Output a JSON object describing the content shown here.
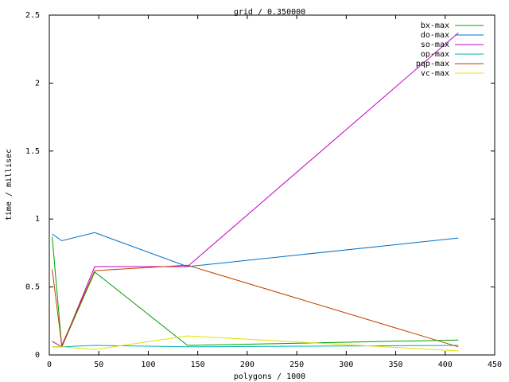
{
  "chart_data": {
    "type": "line",
    "title": "grid / 0.350000",
    "xlabel": "polygons / 1000",
    "ylabel": "time / millisec",
    "xlim": [
      0,
      450
    ],
    "ylim": [
      0,
      2.5
    ],
    "xticks": [
      0,
      50,
      100,
      150,
      200,
      250,
      300,
      350,
      400,
      450
    ],
    "yticks": [
      0,
      0.5,
      1,
      1.5,
      2,
      2.5
    ],
    "xtick_labels": [
      "0",
      "50",
      "100",
      "150",
      "200",
      "250",
      "300",
      "350",
      "400",
      "450"
    ],
    "ytick_labels": [
      "0",
      "0.5",
      "1",
      "1.5",
      "2",
      "2.5"
    ],
    "grid": false,
    "legend_position": "top-right",
    "series": [
      {
        "name": "bx-max",
        "color": "#00a000",
        "x": [
          2.9,
          12.6,
          45.9,
          139.6,
          413.3
        ],
        "y": [
          0.87,
          0.06,
          0.61,
          0.07,
          0.11
        ]
      },
      {
        "name": "do-max",
        "color": "#0070c8",
        "x": [
          2.9,
          12.6,
          45.9,
          139.6,
          413.3
        ],
        "y": [
          0.89,
          0.84,
          0.9,
          0.65,
          0.86
        ]
      },
      {
        "name": "so-max",
        "color": "#c000c0",
        "x": [
          2.9,
          12.6,
          45.9,
          139.6,
          413.3
        ],
        "y": [
          0.1,
          0.06,
          0.65,
          0.65,
          2.37
        ]
      },
      {
        "name": "op-max",
        "color": "#00b0b0",
        "x": [
          2.9,
          12.6,
          45.9,
          139.6,
          413.3
        ],
        "y": [
          0.06,
          0.06,
          0.07,
          0.06,
          0.07
        ]
      },
      {
        "name": "pqp-max",
        "color": "#c04000",
        "x": [
          2.9,
          12.6,
          45.9,
          139.6,
          413.3
        ],
        "y": [
          0.63,
          0.07,
          0.62,
          0.66,
          0.06
        ]
      },
      {
        "name": "vc-max",
        "color": "#e0e000",
        "x": [
          2.9,
          12.6,
          45.9,
          139.6,
          413.3
        ],
        "y": [
          0.06,
          0.06,
          0.04,
          0.14,
          0.03
        ]
      }
    ]
  }
}
